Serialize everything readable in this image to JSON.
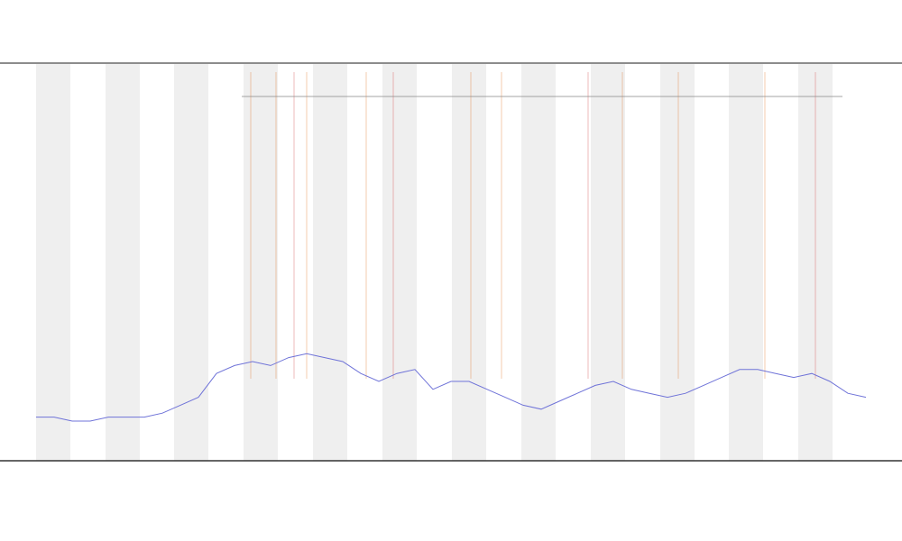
{
  "chart_data": {
    "type": "line",
    "categories": [
      null,
      null,
      null,
      null,
      null,
      null,
      null,
      null,
      null,
      null,
      null,
      null,
      null,
      null,
      null,
      null,
      null,
      null,
      null,
      null,
      null,
      null,
      null,
      null,
      null,
      null,
      null,
      null,
      null,
      null,
      null,
      null,
      null,
      null,
      null,
      null,
      null,
      null,
      null,
      null,
      null,
      null,
      null,
      null,
      null,
      null,
      null
    ],
    "series": [
      {
        "color": "#6f73d8",
        "values": [
          11,
          11,
          10,
          10,
          11,
          11,
          11,
          12,
          14,
          16,
          22,
          24,
          25,
          24,
          26,
          27,
          26,
          25,
          22,
          20,
          22,
          23,
          18,
          20,
          20,
          18,
          16,
          14,
          13,
          15,
          17,
          19,
          20,
          18,
          17,
          16,
          17,
          19,
          21,
          23,
          23,
          22,
          21,
          22,
          20,
          17,
          16
        ]
      }
    ],
    "ylim": [
      0,
      100
    ]
  }
}
